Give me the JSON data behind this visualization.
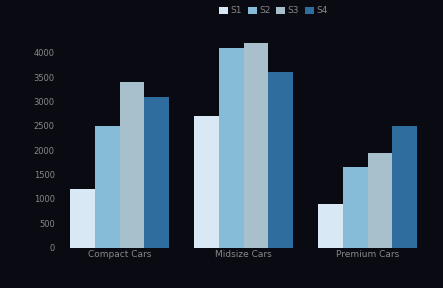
{
  "categories": [
    "Compact Cars",
    "Midsize Cars",
    "Premium Cars"
  ],
  "series_labels": [
    "S1",
    "S2",
    "S3",
    "S4"
  ],
  "series_colors": [
    "#d9e8f5",
    "#87bcd9",
    "#a8bfcc",
    "#2e6d9e"
  ],
  "values": [
    [
      1200,
      2500,
      3400,
      3100
    ],
    [
      2700,
      4100,
      4300,
      3600
    ],
    [
      900,
      1650,
      1950,
      2500
    ]
  ],
  "ylim": [
    0,
    4200
  ],
  "yticks": [
    0,
    500,
    1000,
    1500,
    2000,
    2500,
    3000,
    3500,
    4000
  ],
  "background_color": "#0a0a12",
  "bar_edge_color": "none",
  "tick_color": "#888888",
  "figsize": [
    4.43,
    2.88
  ],
  "dpi": 100
}
